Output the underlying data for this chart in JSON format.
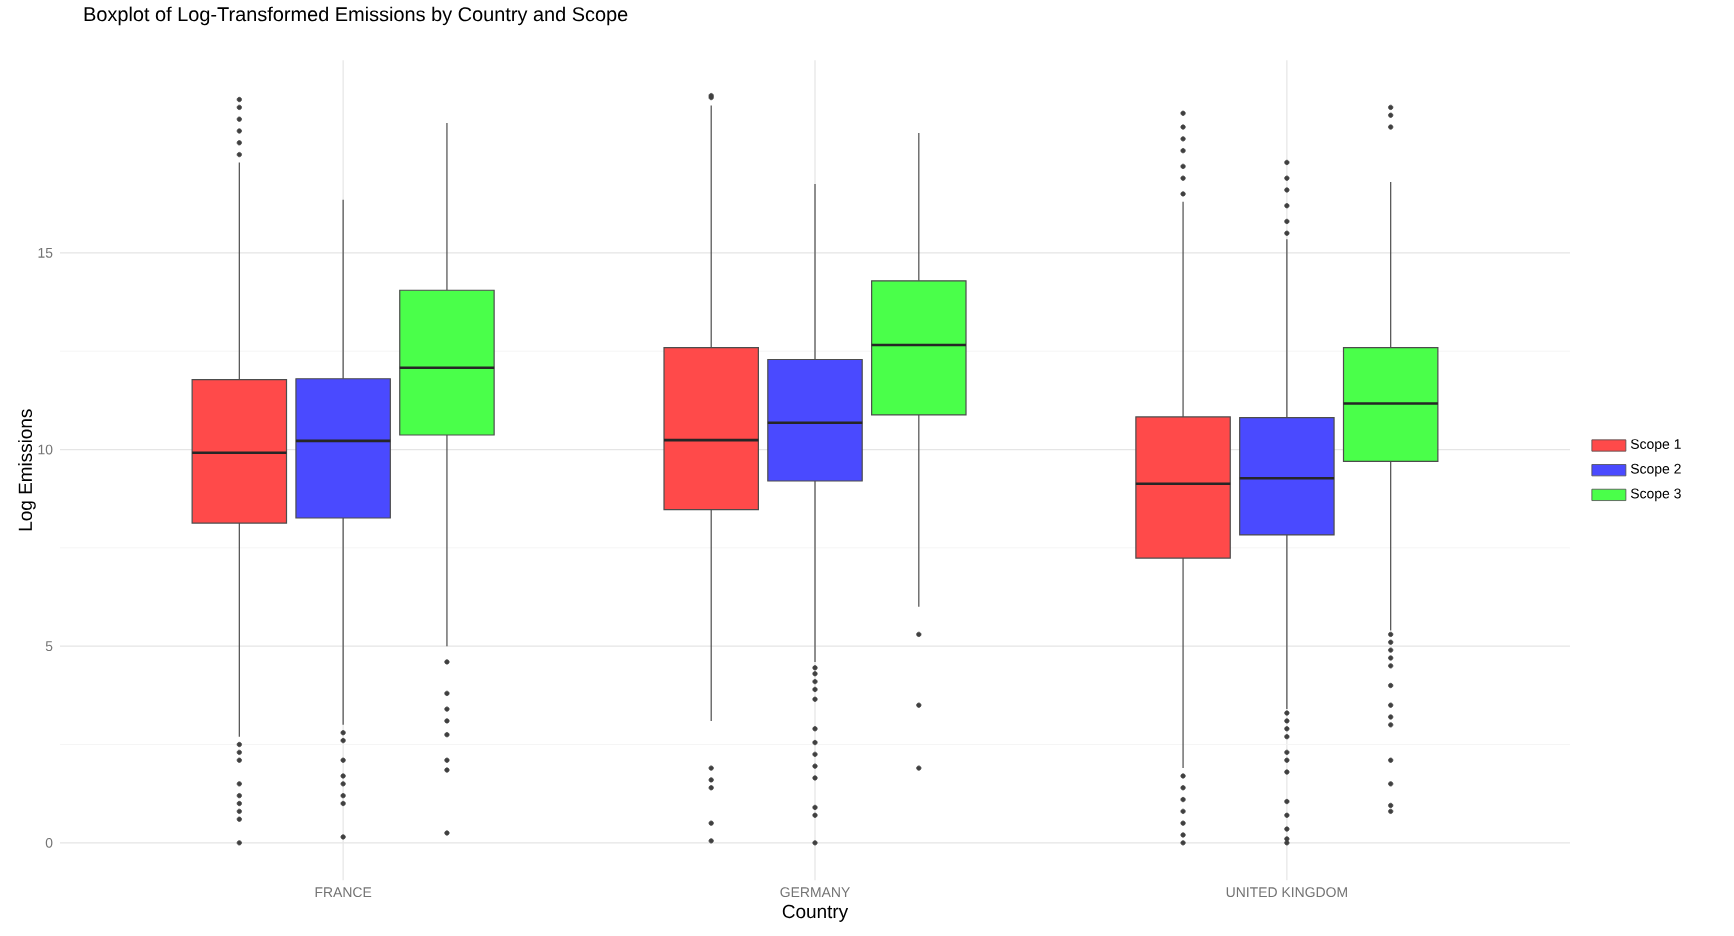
{
  "chart_data": {
    "type": "box",
    "title": "Boxplot of Log-Transformed Emissions by Country and Scope",
    "xlabel": "Country",
    "ylabel": "Log Emissions",
    "categories": [
      "FRANCE",
      "GERMANY",
      "UNITED KINGDOM"
    ],
    "ylim": [
      -0.95,
      19.9
    ],
    "yticks": [
      0,
      5,
      10,
      15
    ],
    "grid": true,
    "legend": "right",
    "series": [
      {
        "name": "Scope 1",
        "color": "#ff4a4a",
        "boxes": [
          {
            "low": 2.7,
            "q1": 8.13,
            "median": 9.92,
            "q3": 11.78,
            "high": 17.3,
            "outliers": [
              17.5,
              17.8,
              18.1,
              18.4,
              18.7,
              18.9,
              2.5,
              2.3,
              2.1,
              1.5,
              1.2,
              1.0,
              0.8,
              0.6,
              0.0
            ]
          },
          {
            "low": 3.1,
            "q1": 8.47,
            "median": 10.24,
            "q3": 12.59,
            "high": 18.75,
            "outliers": [
              18.95,
              19.0,
              1.9,
              1.6,
              1.4,
              0.5,
              0.05
            ]
          },
          {
            "low": 1.9,
            "q1": 7.24,
            "median": 9.13,
            "q3": 10.83,
            "high": 16.3,
            "outliers": [
              16.5,
              16.9,
              17.2,
              17.6,
              17.9,
              18.2,
              18.55,
              1.7,
              1.4,
              1.1,
              0.8,
              0.5,
              0.2,
              0.0
            ]
          }
        ]
      },
      {
        "name": "Scope 2",
        "color": "#4a4aff",
        "boxes": [
          {
            "low": 3.0,
            "q1": 8.26,
            "median": 10.22,
            "q3": 11.8,
            "high": 16.35,
            "outliers": [
              2.8,
              2.6,
              2.1,
              1.7,
              1.5,
              1.2,
              1.0,
              0.15
            ]
          },
          {
            "low": 4.6,
            "q1": 9.2,
            "median": 10.68,
            "q3": 12.29,
            "high": 16.75,
            "outliers": [
              4.45,
              4.3,
              4.1,
              3.9,
              3.65,
              2.9,
              2.55,
              2.25,
              1.95,
              1.65,
              0.9,
              0.7,
              0.0
            ]
          },
          {
            "low": 3.4,
            "q1": 7.83,
            "median": 9.27,
            "q3": 10.81,
            "high": 15.35,
            "outliers": [
              15.5,
              15.8,
              16.2,
              16.6,
              16.9,
              17.3,
              3.3,
              3.1,
              2.9,
              2.7,
              2.3,
              2.1,
              1.8,
              1.05,
              0.7,
              0.35,
              0.1,
              0.0
            ]
          }
        ]
      },
      {
        "name": "Scope 3",
        "color": "#4aff4a",
        "boxes": [
          {
            "low": 5.0,
            "q1": 10.37,
            "median": 12.08,
            "q3": 14.05,
            "high": 18.3,
            "outliers": [
              4.6,
              3.8,
              3.4,
              3.1,
              2.75,
              2.1,
              1.85,
              0.25
            ]
          },
          {
            "low": 6.0,
            "q1": 10.88,
            "median": 12.66,
            "q3": 14.29,
            "high": 18.05,
            "outliers": [
              5.3,
              3.5,
              1.9
            ]
          },
          {
            "low": 5.4,
            "q1": 9.7,
            "median": 11.17,
            "q3": 12.59,
            "high": 16.8,
            "outliers": [
              18.2,
              18.5,
              18.7,
              5.3,
              5.1,
              4.9,
              4.7,
              4.5,
              4.0,
              3.5,
              3.2,
              3.0,
              2.1,
              1.5,
              0.95,
              0.8
            ]
          }
        ]
      }
    ]
  }
}
